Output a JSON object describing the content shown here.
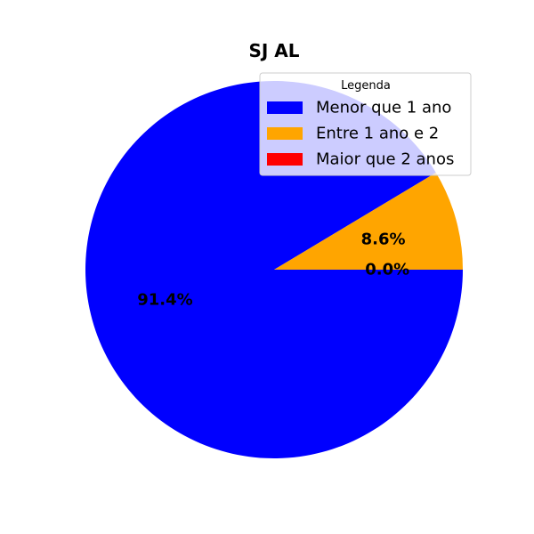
{
  "chart_data": {
    "type": "pie",
    "title": "SJ AL",
    "categories": [
      "Menor que 1 ano",
      "Entre 1 ano e 2",
      "Maior que 2 anos"
    ],
    "values": [
      91.4,
      8.6,
      0.0
    ],
    "labels": [
      "91.4%",
      "8.6%",
      "0.0%"
    ],
    "colors": [
      "#0000ff",
      "#ffa500",
      "#ff0000"
    ],
    "start_angle_deg": 0,
    "direction": "clockwise",
    "legend": {
      "title": "Legenda",
      "placement": "top-right"
    }
  }
}
